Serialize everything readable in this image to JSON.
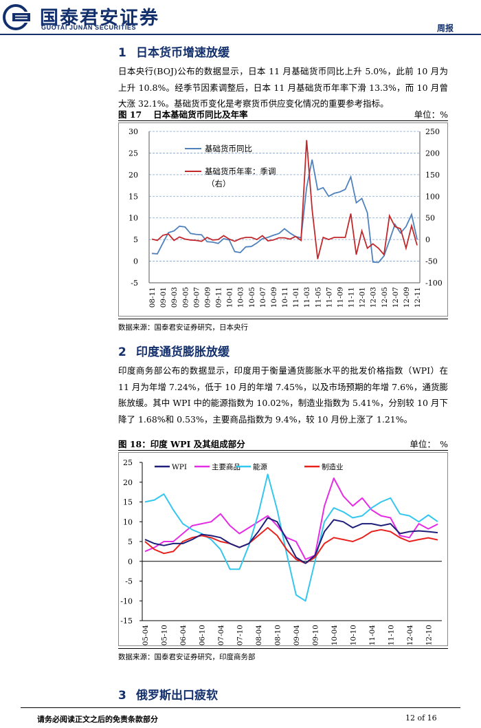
{
  "header": {
    "logo_cn": "国泰君安证券",
    "logo_en": "GUOTAI JUNAN SECURITIES",
    "report_type": "周报",
    "colors": {
      "brand": "#13306d"
    }
  },
  "section1": {
    "number": "1",
    "title": "日本货币增速放缓",
    "paragraph": "日本央行(BOJ)公布的数据显示，日本 11 月基础货币同比上升 5.0%，此前 10 月为上升 10.8%。经季节因素调整后，日本 11 月基础货币年率下滑 13.3%，而 10 月曾大涨 32.1%。基础货币变化是考察货币供应变化情况的重要参考指标。",
    "figure_title": "图 17　 日本基础货币同比及年率",
    "unit": "单位：%",
    "source": "数据来源：国泰君安证券研究，日本央行"
  },
  "section2": {
    "number": "2",
    "title": "印度通货膨胀放缓",
    "paragraph": "印度商务部公布的数据显示，印度用于衡量通货膨胀水平的批发价格指数（WPI）在 11 月为年增 7.24%，低于 10 月的年增 7.45%，以及市场预期的年增 7.6%，通货膨胀放缓。其中 WPI 中的能源指数为 10.02%，制造业指数为 5.41%，分别较 10 月下降了 1.68%和 0.53%，主要商品指数为 9.4%，较 10 月份上涨了 1.21%。",
    "figure_title": "图 18：印度 WPI 及其组成部分",
    "unit": "单位：　%",
    "source": "数据来源：国泰君安证券研究，印度商务部"
  },
  "section3": {
    "number": "3",
    "title": "俄罗斯出口疲软"
  },
  "footer": {
    "disclaimer": "请务必阅读正文之后的免责条款部分",
    "page": "12 of 16"
  },
  "chart_data": [
    {
      "type": "line",
      "categories": [
        "08-11",
        "08-12",
        "09-01",
        "09-02",
        "09-03",
        "09-04",
        "09-05",
        "09-06",
        "09-07",
        "09-08",
        "09-09",
        "09-10",
        "09-11",
        "09-12",
        "10-01",
        "10-02",
        "10-03",
        "10-04",
        "10-05",
        "10-06",
        "10-07",
        "10-08",
        "10-09",
        "10-10",
        "10-11",
        "10-12",
        "11-01",
        "11-02",
        "11-03",
        "11-04",
        "11-05",
        "11-06",
        "11-07",
        "11-08",
        "11-09",
        "11-10",
        "11-11",
        "11-12",
        "12-01",
        "12-02",
        "12-03",
        "12-04",
        "12-05",
        "12-06",
        "12-07",
        "12-08",
        "12-09",
        "12-10",
        "12-11"
      ],
      "x_tick_labels": [
        "08-11",
        "09-01",
        "09-03",
        "09-05",
        "09-07",
        "09-09",
        "09-11",
        "10-01",
        "10-03",
        "10-05",
        "10-07",
        "10-09",
        "10-11",
        "11-01",
        "11-03",
        "11-05",
        "11-07",
        "11-09",
        "11-11",
        "12-01",
        "12-03",
        "12-05",
        "12-07",
        "12-09",
        "12-11"
      ],
      "series": [
        {
          "name": "基础货币同比",
          "axis": "left",
          "color": "#4f81bd",
          "values": [
            1.8,
            1.7,
            4.2,
            6.6,
            7.0,
            8.1,
            7.9,
            6.4,
            6.2,
            6.1,
            4.5,
            4.4,
            4.1,
            5.2,
            4.9,
            2.2,
            2.0,
            3.3,
            3.4,
            4.2,
            5.2,
            5.5,
            6.0,
            6.4,
            7.5,
            6.5,
            5.7,
            5.4,
            17.0,
            23.5,
            16.5,
            17.0,
            15.0,
            15.7,
            16.0,
            16.6,
            19.5,
            13.5,
            14.5,
            11.2,
            -0.2,
            -0.3,
            1.2,
            4.8,
            8.5,
            6.5,
            8.0,
            10.8,
            5.0
          ]
        },
        {
          "name": "基础货币年率：季调（右）",
          "axis": "right",
          "color": "#c0282c",
          "values": [
            1,
            -2,
            10,
            13,
            -2,
            6,
            1,
            -1,
            -2,
            -4,
            5,
            -1,
            0,
            9,
            1,
            -4,
            2,
            5,
            5,
            0,
            9,
            -3,
            -1,
            4,
            4,
            1,
            7,
            -2,
            230,
            70,
            -45,
            5,
            0,
            5,
            5,
            5,
            60,
            -35,
            20,
            -20,
            -10,
            -20,
            -35,
            55,
            30,
            25,
            -20,
            32.1,
            -13.3
          ]
        }
      ],
      "title": "日本基础货币同比及年率",
      "ylim_left": [
        -5,
        30
      ],
      "ylim_right": [
        -100,
        250
      ],
      "left_ticks": [
        -5,
        0,
        5,
        10,
        15,
        20,
        25,
        30
      ],
      "right_ticks": [
        -100,
        -50,
        0,
        50,
        100,
        150,
        200,
        250
      ],
      "grid": true,
      "legend_position": "top-left"
    },
    {
      "type": "line",
      "categories": [
        "05-04",
        "05-07",
        "05-10",
        "06-01",
        "06-04",
        "06-07",
        "06-10",
        "07-01",
        "07-04",
        "07-07",
        "07-10",
        "08-01",
        "08-04",
        "08-07",
        "08-10",
        "09-01",
        "09-04",
        "09-07",
        "09-10",
        "10-01",
        "10-04",
        "10-07",
        "10-10",
        "11-01",
        "11-04",
        "11-07",
        "11-10",
        "12-01",
        "12-04",
        "12-07",
        "12-10",
        "12-11"
      ],
      "x_tick_labels": [
        "05-04",
        "05-10",
        "06-04",
        "06-10",
        "07-04",
        "07-10",
        "08-04",
        "08-10",
        "09-04",
        "09-10",
        "10-04",
        "10-10",
        "11-04",
        "11-10",
        "12-04",
        "12-10"
      ],
      "series": [
        {
          "name": "WPI",
          "color": "#1f1f7a",
          "values": [
            5.5,
            4.5,
            4.0,
            4.5,
            4.5,
            5.5,
            6.8,
            6.5,
            6.0,
            4.5,
            3.5,
            4.5,
            7.5,
            11.0,
            10.0,
            5.5,
            1.0,
            -0.5,
            1.5,
            7.5,
            10.5,
            10.0,
            8.5,
            9.5,
            9.5,
            9.0,
            9.5,
            7.0,
            7.5,
            7.7,
            7.5,
            7.24
          ]
        },
        {
          "name": "主要商品",
          "color": "#e52ce5",
          "values": [
            2.5,
            3.5,
            5.0,
            5.0,
            7.0,
            9.0,
            9.5,
            10.0,
            12.0,
            9.0,
            7.0,
            8.5,
            10.0,
            11.5,
            9.0,
            6.0,
            5.0,
            0.5,
            1.5,
            14.0,
            21.0,
            16.5,
            14.0,
            16.0,
            13.0,
            11.5,
            11.0,
            6.5,
            6.0,
            9.5,
            8.2,
            9.4
          ]
        },
        {
          "name": "能源",
          "color": "#33c6ee",
          "values": [
            15.0,
            15.5,
            17.0,
            13.0,
            9.5,
            8.0,
            7.0,
            5.5,
            3.0,
            -2.0,
            -2.0,
            4.0,
            12.0,
            22.0,
            13.0,
            2.0,
            -8.5,
            -10.0,
            0.0,
            10.0,
            13.5,
            12.5,
            11.0,
            11.5,
            13.5,
            15.0,
            16.0,
            12.0,
            11.5,
            10.0,
            11.7,
            10.02
          ]
        },
        {
          "name": "制造业",
          "color": "#e8211d",
          "values": [
            5.0,
            3.0,
            2.0,
            2.5,
            5.0,
            6.0,
            6.5,
            6.0,
            5.0,
            4.5,
            3.5,
            4.5,
            6.5,
            8.5,
            6.5,
            3.0,
            0.5,
            -0.5,
            1.0,
            4.5,
            6.0,
            5.5,
            5.0,
            6.0,
            7.5,
            8.0,
            7.5,
            6.0,
            5.0,
            5.5,
            5.94,
            5.41
          ]
        }
      ],
      "title": "印度 WPI 及其组成部分",
      "ylim": [
        -15,
        25
      ],
      "y_ticks": [
        -15,
        -10,
        -5,
        0,
        5,
        10,
        15,
        20,
        25
      ],
      "grid": false,
      "legend_position": "top"
    }
  ]
}
